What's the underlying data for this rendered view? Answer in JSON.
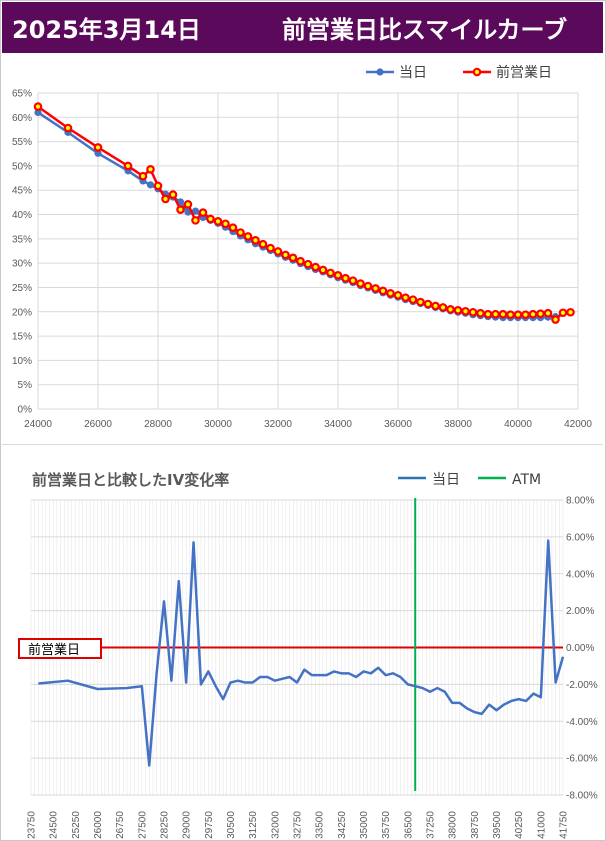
{
  "header": {
    "date": "2025年3月14日",
    "title": "前営業日比スマイルカーブ"
  },
  "chart_data": [
    {
      "type": "line",
      "title": "",
      "xlim": [
        24000,
        42000
      ],
      "ylim": [
        0,
        65
      ],
      "x_ticks": [
        "24000",
        "26000",
        "28000",
        "30000",
        "32000",
        "34000",
        "36000",
        "38000",
        "40000",
        "42000"
      ],
      "y_ticks": [
        "0%",
        "5%",
        "10%",
        "15%",
        "20%",
        "25%",
        "30%",
        "35%",
        "40%",
        "45%",
        "50%",
        "55%",
        "60%",
        "65%"
      ],
      "legend": "top-right",
      "series": [
        {
          "name": "当日",
          "color": "#4472c4",
          "marker": "circle",
          "x": [
            24000,
            25000,
            26000,
            27000,
            27500,
            27750,
            28000,
            28250,
            28500,
            28750,
            29000,
            29250,
            29500,
            29750,
            30000,
            30250,
            30500,
            30750,
            31000,
            31250,
            31500,
            31750,
            32000,
            32250,
            32500,
            32750,
            33000,
            33250,
            33500,
            33750,
            34000,
            34250,
            34500,
            34750,
            35000,
            35250,
            35500,
            35750,
            36000,
            36250,
            36500,
            36750,
            37000,
            37250,
            37500,
            37750,
            38000,
            38250,
            38500,
            38750,
            39000,
            39250,
            39500,
            39750,
            40000,
            40250,
            40500,
            40750,
            41000,
            41250
          ],
          "y": [
            61.0,
            56.9,
            52.6,
            49.0,
            46.9,
            46.1,
            45.3,
            44.2,
            43.6,
            42.6,
            40.5,
            40.7,
            39.4,
            38.8,
            38.2,
            37.4,
            36.5,
            35.6,
            34.8,
            34.0,
            33.3,
            32.6,
            31.9,
            31.2,
            30.6,
            29.9,
            29.3,
            28.7,
            28.2,
            27.6,
            27.0,
            26.5,
            26.0,
            25.4,
            24.9,
            24.4,
            23.9,
            23.4,
            23.0,
            22.5,
            22.1,
            21.7,
            21.3,
            20.9,
            20.6,
            20.2,
            19.9,
            19.7,
            19.4,
            19.2,
            19.0,
            18.9,
            18.8,
            18.8,
            18.8,
            18.8,
            18.8,
            18.8,
            18.9,
            19.0
          ]
        },
        {
          "name": "前営業日",
          "color": "#ff0000",
          "marker": "circle",
          "x": [
            24000,
            25000,
            26000,
            27000,
            27500,
            27750,
            28000,
            28250,
            28500,
            28750,
            29000,
            29250,
            29500,
            29750,
            30000,
            30250,
            30500,
            30750,
            31000,
            31250,
            31500,
            31750,
            32000,
            32250,
            32500,
            32750,
            33000,
            33250,
            33500,
            33750,
            34000,
            34250,
            34500,
            34750,
            35000,
            35250,
            35500,
            35750,
            36000,
            36250,
            36500,
            36750,
            37000,
            37250,
            37500,
            37750,
            38000,
            38250,
            38500,
            38750,
            39000,
            39250,
            39500,
            39750,
            40000,
            40250,
            40500,
            40750,
            41000,
            41250,
            41500,
            41750
          ],
          "y": [
            62.2,
            57.8,
            53.8,
            50.0,
            47.9,
            49.3,
            45.9,
            43.2,
            44.1,
            41.0,
            42.1,
            38.8,
            40.4,
            39.1,
            38.6,
            38.1,
            37.3,
            36.3,
            35.5,
            34.7,
            33.9,
            33.1,
            32.4,
            31.7,
            31.1,
            30.4,
            29.8,
            29.2,
            28.6,
            28.0,
            27.5,
            26.9,
            26.4,
            25.8,
            25.3,
            24.8,
            24.3,
            23.8,
            23.4,
            22.9,
            22.5,
            22.0,
            21.6,
            21.2,
            20.9,
            20.5,
            20.3,
            20.1,
            19.9,
            19.7,
            19.5,
            19.5,
            19.5,
            19.4,
            19.4,
            19.4,
            19.5,
            19.6,
            19.7,
            18.4,
            19.8,
            19.9
          ]
        }
      ]
    },
    {
      "type": "line",
      "title": "前営業日と比較したIV変化率",
      "y_axis": "right",
      "ylim": [
        -8,
        8
      ],
      "y_ticks": [
        "8.00%",
        "6.00%",
        "4.00%",
        "2.00%",
        "0.00%",
        "-2.00%",
        "-4.00%",
        "-6.00%",
        "-8.00%"
      ],
      "x_ticks": [
        "23750",
        "24500",
        "25250",
        "26000",
        "26750",
        "27500",
        "28250",
        "29000",
        "29750",
        "30500",
        "31250",
        "32000",
        "32750",
        "33500",
        "34250",
        "35000",
        "35750",
        "36500",
        "37250",
        "38000",
        "38750",
        "39500",
        "40250",
        "41000",
        "41750"
      ],
      "legend": "top-right",
      "reference_line_label": "前営業日",
      "atm_strike": 36750,
      "series": [
        {
          "name": "当日",
          "color": "#4472c4",
          "x": [
            24000,
            25000,
            26000,
            27000,
            27500,
            27750,
            28000,
            28250,
            28500,
            28750,
            29000,
            29250,
            29500,
            29750,
            30000,
            30250,
            30500,
            30750,
            31000,
            31250,
            31500,
            31750,
            32000,
            32250,
            32500,
            32750,
            33000,
            33250,
            33500,
            33750,
            34000,
            34250,
            34500,
            34750,
            35000,
            35250,
            35500,
            35750,
            36000,
            36250,
            36500,
            36750,
            37000,
            37250,
            37500,
            37750,
            38000,
            38250,
            38500,
            38750,
            39000,
            39250,
            39500,
            39750,
            40000,
            40250,
            40500,
            40750,
            41000,
            41250,
            41500,
            41750
          ],
          "y": [
            -1.95,
            -1.8,
            -2.25,
            -2.2,
            -2.1,
            -6.4,
            -1.4,
            2.5,
            -1.8,
            3.6,
            -1.9,
            5.7,
            -2.0,
            -1.3,
            -2.1,
            -2.8,
            -1.9,
            -1.8,
            -1.9,
            -1.9,
            -1.6,
            -1.6,
            -1.8,
            -1.7,
            -1.6,
            -1.9,
            -1.2,
            -1.5,
            -1.5,
            -1.5,
            -1.3,
            -1.4,
            -1.4,
            -1.6,
            -1.3,
            -1.4,
            -1.1,
            -1.5,
            -1.4,
            -1.6,
            -2.0,
            -2.1,
            -2.2,
            -2.4,
            -2.2,
            -2.4,
            -3.0,
            -3.0,
            -3.3,
            -3.5,
            -3.6,
            -3.1,
            -3.4,
            -3.1,
            -2.9,
            -2.8,
            -2.9,
            -2.5,
            -2.7,
            5.8,
            -1.9,
            -0.5
          ]
        },
        {
          "name": "ATM",
          "color": "#00b050"
        }
      ]
    }
  ]
}
